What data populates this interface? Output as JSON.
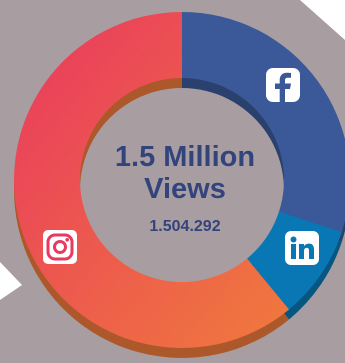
{
  "chart_data": {
    "type": "pie",
    "variant": "donut",
    "title": "1.5 Million Views",
    "title_lines": [
      "1.5 Million",
      "Views"
    ],
    "subtitle": "1.504.292",
    "series": [
      {
        "name": "facebook-icon",
        "value": 0.3,
        "color": "#3b5998"
      },
      {
        "name": "linkedin-icon",
        "value": 0.09,
        "color": "#0a77b5"
      },
      {
        "name": "instagram-icon",
        "value": 0.61,
        "color_start": "#e9395f",
        "color_end": "#f07a3c"
      }
    ]
  },
  "colors": {
    "background": "#a89ea2",
    "text": "#33447d"
  }
}
